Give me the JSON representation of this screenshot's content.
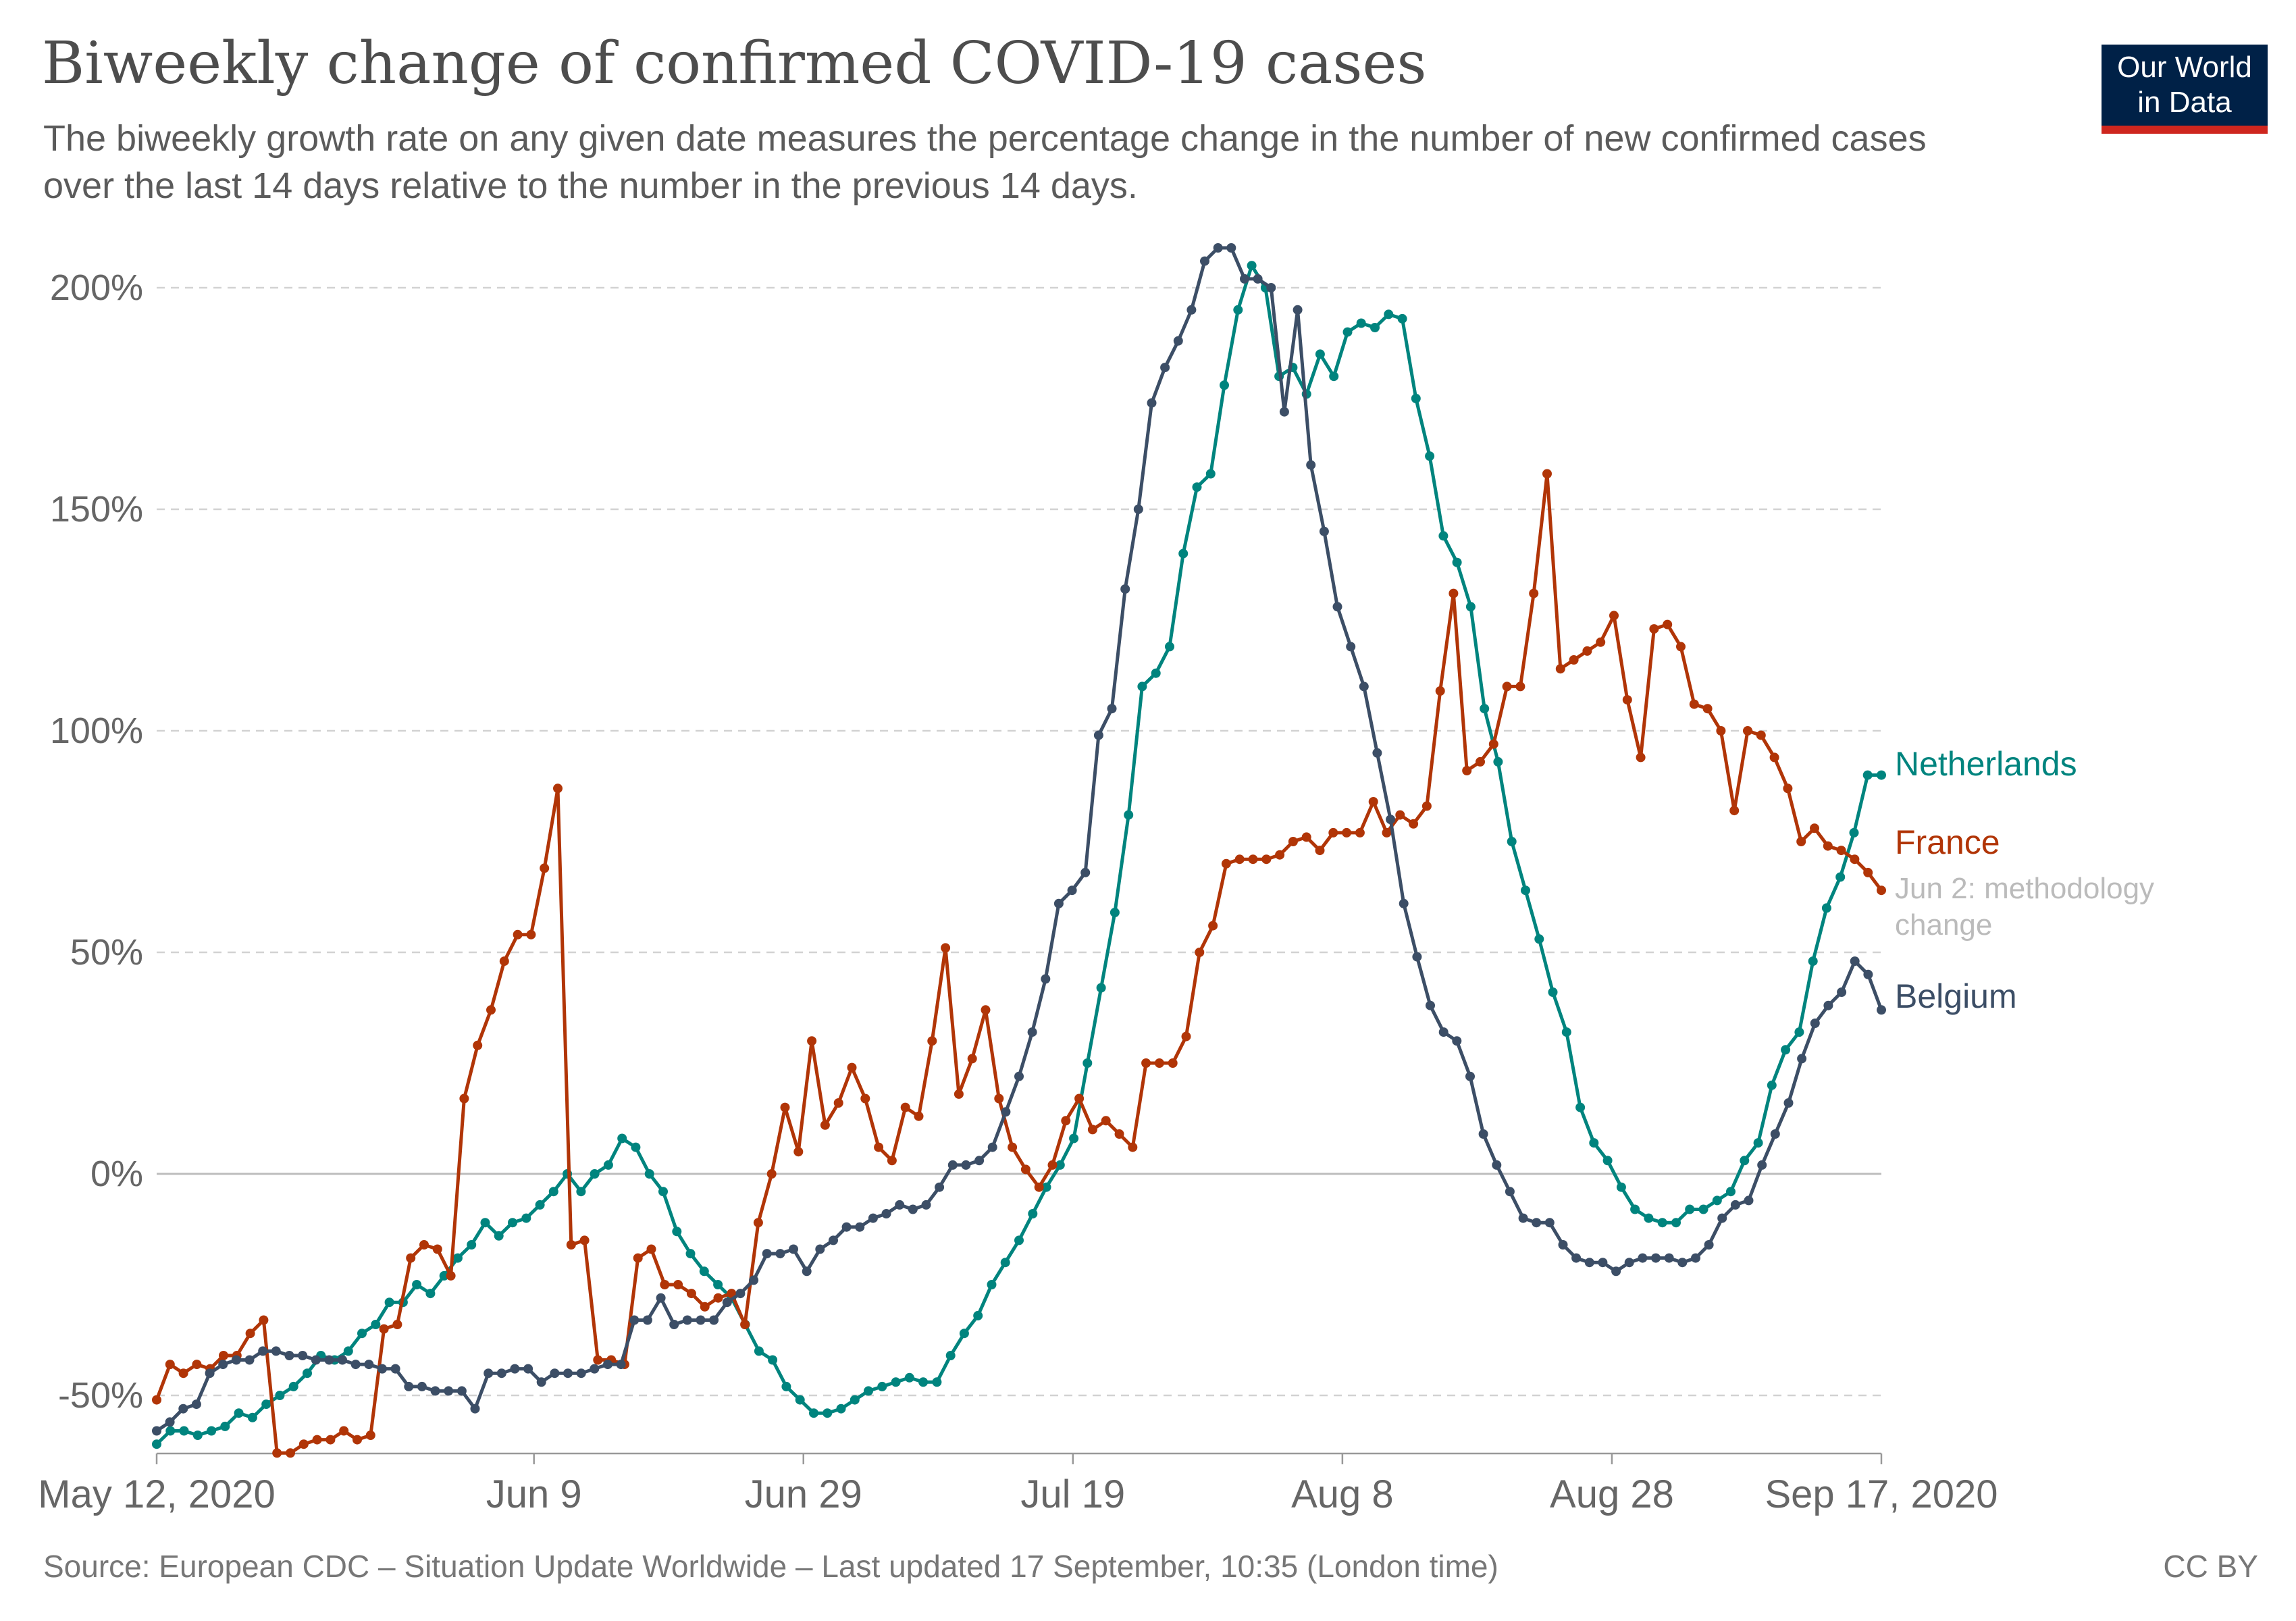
{
  "header": {
    "title": "Biweekly change of confirmed COVID-19 cases",
    "subtitle": "The biweekly growth rate on any given date measures the percentage change in the number of new confirmed cases over the last 14 days relative to the number in the previous 14 days.",
    "logo_text": "Our World\nin Data"
  },
  "footer": {
    "source": "Source: European CDC – Situation Update Worldwide – Last updated 17 September, 10:35 (London time)",
    "license": "CC BY"
  },
  "chart_data": {
    "type": "line",
    "title": "Biweekly change of confirmed COVID-19 cases",
    "x_range": [
      "2020-05-12",
      "2020-09-17"
    ],
    "x_ticks": [
      "May 12, 2020",
      "Jun 9",
      "Jun 29",
      "Jul 19",
      "Aug 8",
      "Aug 28",
      "Sep 17, 2020"
    ],
    "x_tick_dates": [
      "2020-05-12",
      "2020-06-09",
      "2020-06-29",
      "2020-07-19",
      "2020-08-08",
      "2020-08-28",
      "2020-09-17"
    ],
    "y_ticks": [
      -50,
      0,
      50,
      100,
      150,
      200
    ],
    "y_tick_labels": [
      "-50%",
      "0%",
      "50%",
      "100%",
      "150%",
      "200%"
    ],
    "ylim": [
      -65,
      212
    ],
    "grid": true,
    "legend": "right",
    "series": [
      {
        "name": "Netherlands",
        "color": "#00847e",
        "values": [
          -61,
          -58,
          -58,
          -59,
          -58,
          -57,
          -54,
          -55,
          -52,
          -50,
          -48,
          -45,
          -41,
          -42,
          -40,
          -36,
          -34,
          -29,
          -29,
          -25,
          -27,
          -23,
          -19,
          -16,
          -11,
          -14,
          -11,
          -10,
          -7,
          -4,
          0,
          -4,
          0,
          2,
          8,
          6,
          0,
          -4,
          -13,
          -18,
          -22,
          -25,
          -28,
          -34,
          -40,
          -42,
          -48,
          -51,
          -54,
          -54,
          -53,
          -51,
          -49,
          -48,
          -47,
          -46,
          -47,
          -47,
          -41,
          -36,
          -32,
          -25,
          -20,
          -15,
          -9,
          -3,
          2,
          8,
          25,
          42,
          59,
          81,
          110,
          113,
          119,
          140,
          155,
          158,
          178,
          195,
          205,
          200,
          180,
          182,
          176,
          185,
          180,
          190,
          192,
          191,
          194,
          193,
          175,
          162,
          144,
          138,
          128,
          105,
          93,
          75,
          64,
          53,
          41,
          32,
          15,
          7,
          3,
          -3,
          -8,
          -10,
          -11,
          -11,
          -8,
          -8,
          -6,
          -4,
          3,
          7,
          20,
          28,
          32,
          48,
          60,
          67,
          77,
          90,
          90
        ]
      },
      {
        "name": "France",
        "color": "#b13507",
        "values": [
          -51,
          -43,
          -45,
          -43,
          -44,
          -41,
          -41,
          -36,
          -33,
          -63,
          -63,
          -61,
          -60,
          -60,
          -58,
          -60,
          -59,
          -35,
          -34,
          -19,
          -16,
          -17,
          -23,
          17,
          29,
          37,
          48,
          54,
          54,
          69,
          87,
          -16,
          -15,
          -42,
          -42,
          -43,
          -19,
          -17,
          -25,
          -25,
          -27,
          -30,
          -28,
          -27,
          -34,
          -11,
          0,
          15,
          5,
          30,
          11,
          16,
          24,
          17,
          6,
          3,
          15,
          13,
          30,
          51,
          18,
          26,
          37,
          17,
          6,
          1,
          -3,
          2,
          12,
          17,
          10,
          12,
          9,
          6,
          25,
          25,
          25,
          31,
          50,
          56,
          70,
          71,
          71,
          71,
          72,
          75,
          76,
          73,
          77,
          77,
          77,
          84,
          77,
          81,
          79,
          83,
          109,
          131,
          91,
          93,
          97,
          110,
          110,
          131,
          158,
          114,
          116,
          118,
          120,
          126,
          107,
          94,
          123,
          124,
          119,
          106,
          105,
          100,
          82,
          100,
          99,
          94,
          87,
          75,
          78,
          74,
          73,
          71,
          68,
          64
        ]
      },
      {
        "name": "Belgium",
        "color": "#3c4e66",
        "values": [
          -58,
          -56,
          -53,
          -52,
          -45,
          -43,
          -42,
          -42,
          -40,
          -40,
          -41,
          -41,
          -42,
          -42,
          -42,
          -43,
          -43,
          -44,
          -44,
          -48,
          -48,
          -49,
          -49,
          -49,
          -53,
          -45,
          -45,
          -44,
          -44,
          -47,
          -45,
          -45,
          -45,
          -44,
          -43,
          -43,
          -33,
          -33,
          -28,
          -34,
          -33,
          -33,
          -33,
          -29,
          -27,
          -24,
          -18,
          -18,
          -17,
          -22,
          -17,
          -15,
          -12,
          -12,
          -10,
          -9,
          -7,
          -8,
          -7,
          -3,
          2,
          2,
          3,
          6,
          14,
          22,
          32,
          44,
          61,
          64,
          68,
          99,
          105,
          132,
          150,
          174,
          182,
          188,
          195,
          206,
          209,
          209,
          202,
          202,
          200,
          172,
          195,
          160,
          145,
          128,
          119,
          110,
          95,
          80,
          61,
          49,
          38,
          32,
          30,
          22,
          9,
          2,
          -4,
          -10,
          -11,
          -11,
          -16,
          -19,
          -20,
          -20,
          -22,
          -20,
          -19,
          -19,
          -19,
          -20,
          -19,
          -16,
          -10,
          -7,
          -6,
          2,
          9,
          16,
          26,
          34,
          38,
          41,
          48,
          45,
          37
        ]
      }
    ],
    "annotation": {
      "date": "Jun 2",
      "text": ": methodology change",
      "series": "France"
    }
  }
}
